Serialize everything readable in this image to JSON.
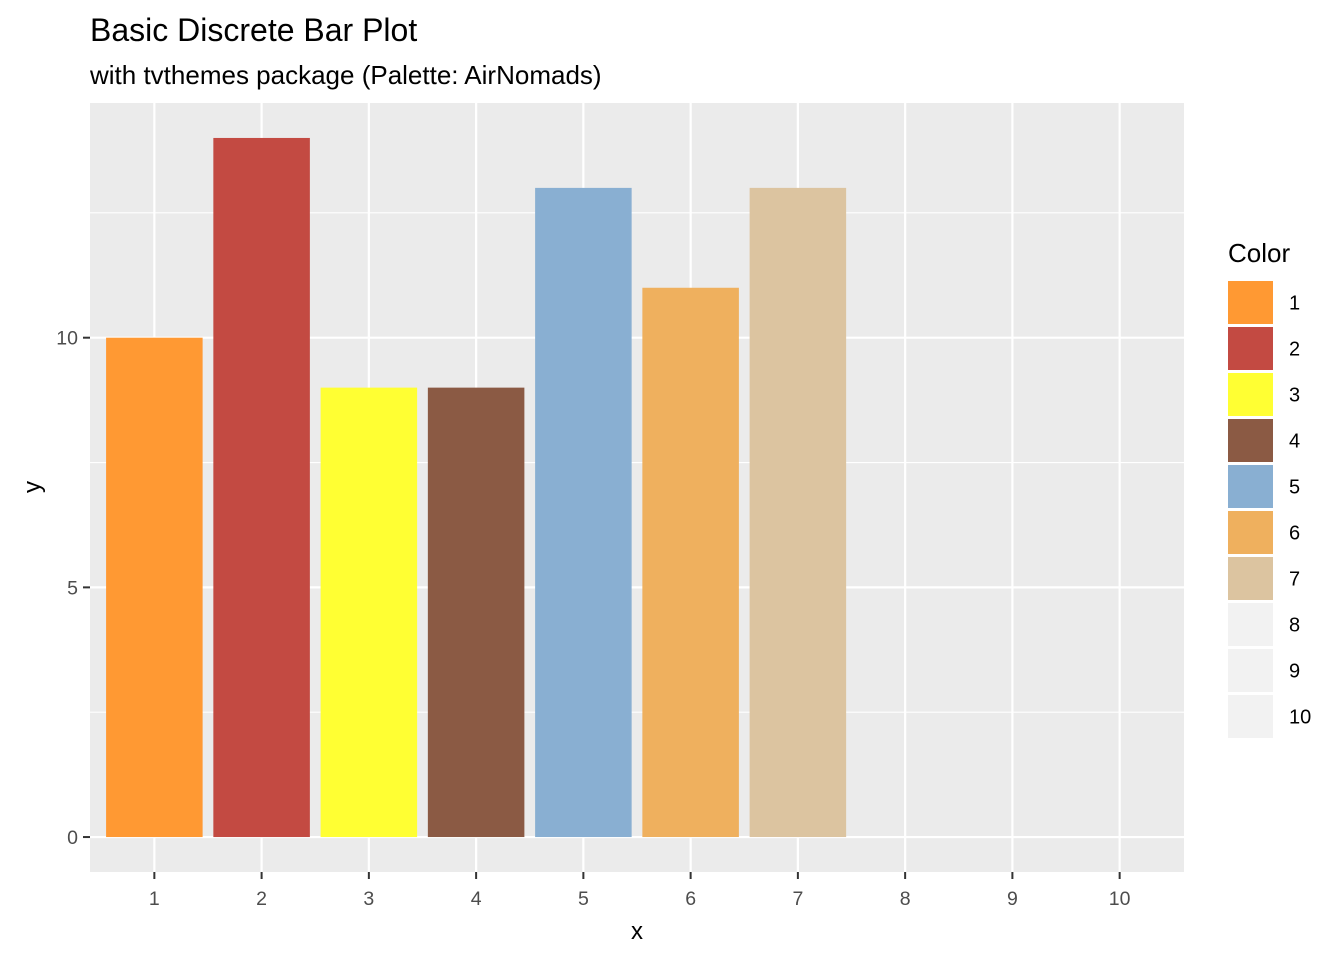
{
  "chart_data": {
    "type": "bar",
    "title": "Basic Discrete Bar Plot",
    "subtitle": "with tvthemes package (Palette: AirNomads)",
    "xlabel": "x",
    "ylabel": "y",
    "categories": [
      "1",
      "2",
      "3",
      "4",
      "5",
      "6",
      "7",
      "8",
      "9",
      "10"
    ],
    "values": [
      10,
      14,
      9,
      9,
      13,
      11,
      13,
      0,
      0,
      0
    ],
    "colors": [
      "#FF9933",
      "#C34A42",
      "#FFFF33",
      "#8B5A44",
      "#89AFD2",
      "#EFB05E",
      "#DCC4A0",
      "#F2F2F2",
      "#F2F2F2",
      "#F2F2F2"
    ],
    "ylim": [
      -0.7,
      14.7
    ],
    "yticks": [
      0,
      5,
      10
    ],
    "ytick_labels": [
      "0",
      "5",
      "10"
    ],
    "grid": true,
    "panel_background": "#EBEBEB",
    "legend": {
      "title": "Color",
      "position": "right",
      "entries": [
        {
          "label": "1",
          "color": "#FF9933"
        },
        {
          "label": "2",
          "color": "#C34A42"
        },
        {
          "label": "3",
          "color": "#FFFF33"
        },
        {
          "label": "4",
          "color": "#8B5A44"
        },
        {
          "label": "5",
          "color": "#89AFD2"
        },
        {
          "label": "6",
          "color": "#EFB05E"
        },
        {
          "label": "7",
          "color": "#DCC4A0"
        },
        {
          "label": "8",
          "color": "#F2F2F2"
        },
        {
          "label": "9",
          "color": "#F2F2F2"
        },
        {
          "label": "10",
          "color": "#F2F2F2"
        }
      ]
    }
  }
}
